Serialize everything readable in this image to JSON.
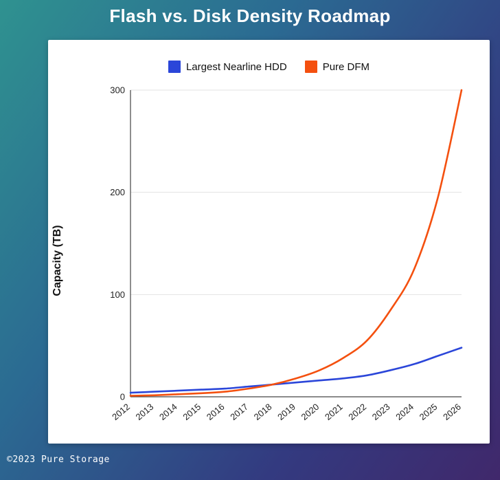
{
  "page": {
    "title": "Flash vs. Disk Density Roadmap",
    "footer": "©2023 Pure Storage"
  },
  "legend": [
    {
      "label": "Largest Nearline HDD",
      "color": "#2b46d9"
    },
    {
      "label": "Pure DFM",
      "color": "#f4500f"
    }
  ],
  "chart_data": {
    "type": "line",
    "title": "Flash vs. Disk Density Roadmap",
    "xlabel": "",
    "ylabel": "Capacity (TB)",
    "x": [
      2012,
      2013,
      2014,
      2015,
      2016,
      2017,
      2018,
      2019,
      2020,
      2021,
      2022,
      2023,
      2024,
      2025,
      2026
    ],
    "series": [
      {
        "name": "Largest Nearline HDD",
        "color": "#2b46d9",
        "values": [
          4,
          5,
          6,
          7,
          8,
          10,
          12,
          14,
          16,
          18,
          21,
          26,
          32,
          40,
          48
        ]
      },
      {
        "name": "Pure DFM",
        "color": "#f4500f",
        "values": [
          1,
          1.5,
          2.5,
          3.5,
          5,
          8,
          12,
          18,
          26,
          38,
          55,
          85,
          125,
          195,
          300
        ]
      }
    ],
    "ylim": [
      0,
      300
    ],
    "yticks": [
      0,
      100,
      200,
      300
    ],
    "grid": true,
    "legend_position": "top"
  }
}
